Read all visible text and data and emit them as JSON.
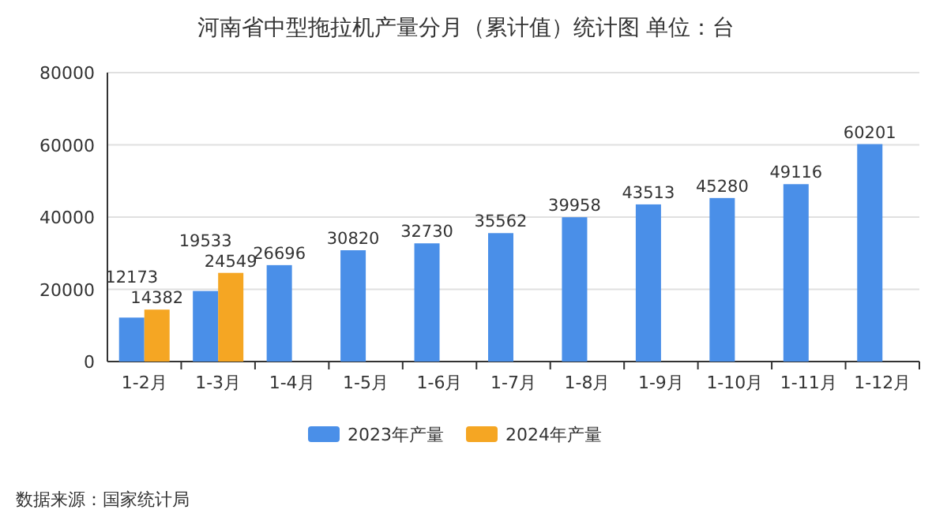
{
  "chart_data": {
    "type": "bar",
    "title": "河南省中型拖拉机产量分月（累计值）统计图 单位：台",
    "categories": [
      "1-2月",
      "1-3月",
      "1-4月",
      "1-5月",
      "1-6月",
      "1-7月",
      "1-8月",
      "1-9月",
      "1-10月",
      "1-11月",
      "1-12月"
    ],
    "series": [
      {
        "name": "2023年产量",
        "color": "#4a8fe8",
        "values": [
          12173,
          19533,
          26696,
          30820,
          32730,
          35562,
          39958,
          43513,
          45280,
          49116,
          60201
        ]
      },
      {
        "name": "2024年产量",
        "color": "#f5a623",
        "values": [
          14382,
          24549,
          null,
          null,
          null,
          null,
          null,
          null,
          null,
          null,
          null
        ]
      }
    ],
    "ylim": [
      0,
      80000
    ],
    "yticks": [
      0,
      20000,
      40000,
      60000,
      80000
    ],
    "grid": "y",
    "legend": "bottom",
    "data_labels": true,
    "annotations": [
      "数据来源：国家统计局"
    ]
  }
}
